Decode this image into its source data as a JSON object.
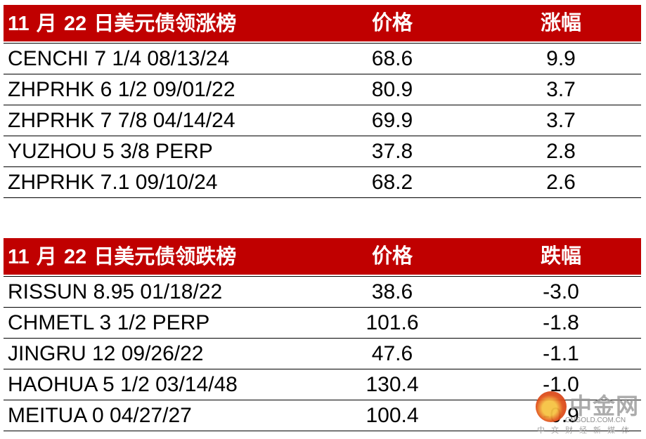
{
  "gainers": {
    "title_num1": "11",
    "title_mid": "月",
    "title_num2": "22",
    "title_rest": "日美元债领涨榜",
    "price_header": "价格",
    "change_header": "涨幅",
    "rows": [
      {
        "name": "CENCHI 7 1/4 08/13/24",
        "price": "68.6",
        "change": "9.9"
      },
      {
        "name": "ZHPRHK 6 1/2 09/01/22",
        "price": "80.9",
        "change": "3.7"
      },
      {
        "name": "ZHPRHK 7 7/8 04/14/24",
        "price": "69.9",
        "change": "3.7"
      },
      {
        "name": "YUZHOU 5 3/8 PERP",
        "price": "37.8",
        "change": "2.8"
      },
      {
        "name": "ZHPRHK 7.1 09/10/24",
        "price": "68.2",
        "change": "2.6"
      }
    ]
  },
  "losers": {
    "title_num1": "11",
    "title_mid": "月",
    "title_num2": "22",
    "title_rest": "日美元债领跌榜",
    "price_header": "价格",
    "change_header": "跌幅",
    "rows": [
      {
        "name": "RISSUN 8.95 01/18/22",
        "price": "38.6",
        "change": "-3.0"
      },
      {
        "name": "CHMETL 3 1/2 PERP",
        "price": "101.6",
        "change": "-1.8"
      },
      {
        "name": "JINGRU 12 09/26/22",
        "price": "47.6",
        "change": "-1.1"
      },
      {
        "name": "HAOHUA 5 1/2 03/14/48",
        "price": "130.4",
        "change": "-1.0"
      },
      {
        "name": "MEITUA 0 04/27/27",
        "price": "100.4",
        "change": "-0.9"
      }
    ]
  },
  "watermark": {
    "brand": "中金网",
    "domain": "CNGOLD.COM.CN",
    "tagline": "中文财经新媒体"
  },
  "colors": {
    "header_bg": "#C00000"
  }
}
